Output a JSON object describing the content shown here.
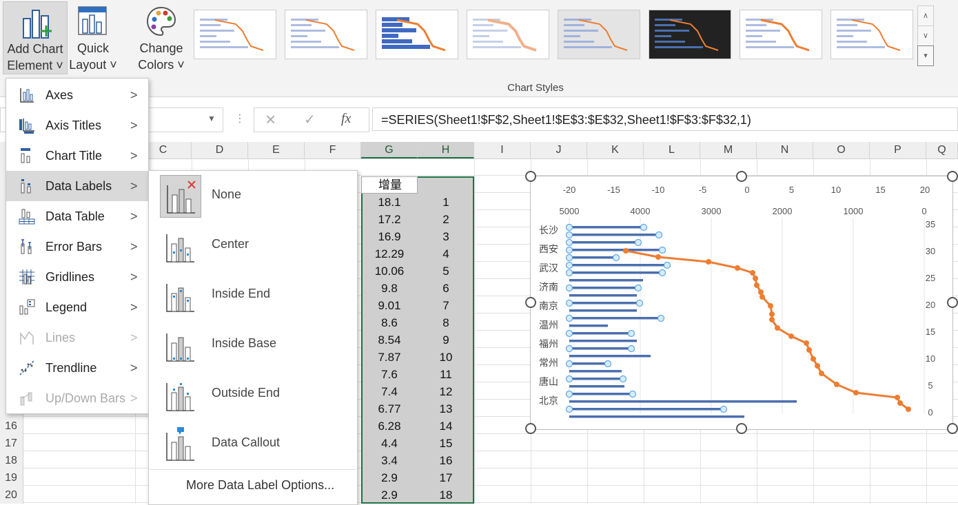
{
  "ribbon": {
    "add_chart_element": [
      "Add Chart",
      "Element ˅"
    ],
    "quick_layout": [
      "Quick",
      "Layout ˅"
    ],
    "change_colors": [
      "Change",
      "Colors ˅"
    ],
    "group_label": "Chart Styles",
    "styles": [
      "Style 1",
      "Style 2",
      "Style 3",
      "Style 4",
      "Style 5",
      "Style 6",
      "Style 7",
      "Style 8"
    ]
  },
  "formula_bar": {
    "cancel_icon": "×",
    "enter_icon": "✓",
    "fx": "fx",
    "formula": "=SERIES(Sheet1!$F$2,Sheet1!$E$3:$E$32,Sheet1!$F$3:$F$32,1)"
  },
  "columns": [
    "C",
    "D",
    "E",
    "F",
    "G",
    "H",
    "I",
    "J",
    "K",
    "L",
    "M",
    "N",
    "O",
    "P",
    "Q"
  ],
  "rows": [
    "16",
    "17",
    "18",
    "19",
    "20"
  ],
  "col_g": {
    "header": "增量",
    "values": [
      "18.1",
      "17.2",
      "16.9",
      "12.29",
      "10.06",
      "9.8",
      "9.01",
      "8.6",
      "8.54",
      "7.87",
      "7.6",
      "7.4",
      "6.77",
      "6.28",
      "4.4",
      "3.4",
      "2.9",
      "2.9"
    ]
  },
  "col_h": {
    "values": [
      "1",
      "2",
      "3",
      "4",
      "5",
      "6",
      "7",
      "8",
      "9",
      "10",
      "11",
      "12",
      "13",
      "14",
      "15",
      "16",
      "17",
      "18"
    ]
  },
  "chart": {
    "top_axis_1": [
      "-20",
      "-15",
      "-10",
      "-5",
      "0",
      "5",
      "10",
      "15",
      "20"
    ],
    "top_axis_2": [
      "5000",
      "4000",
      "3000",
      "2000",
      "1000",
      "0"
    ],
    "right_axis": [
      "35",
      "30",
      "25",
      "20",
      "15",
      "10",
      "5",
      "0"
    ],
    "cities": [
      "长沙",
      "西安",
      "武汉",
      "济南",
      "南京",
      "温州",
      "福州",
      "常州",
      "唐山",
      "北京"
    ],
    "colors": {
      "bar": "#4b6fae",
      "line": "#ed7d31",
      "marker": "#5aa6e6"
    }
  },
  "add_chart_menu": [
    {
      "label": "Axes",
      "icon": "axes-icon"
    },
    {
      "label": "Axis Titles",
      "icon": "axis-titles-icon"
    },
    {
      "label": "Chart Title",
      "icon": "chart-title-icon"
    },
    {
      "label": "Data Labels",
      "icon": "data-labels-icon"
    },
    {
      "label": "Data Table",
      "icon": "data-table-icon"
    },
    {
      "label": "Error Bars",
      "icon": "error-bars-icon"
    },
    {
      "label": "Gridlines",
      "icon": "gridlines-icon"
    },
    {
      "label": "Legend",
      "icon": "legend-icon"
    },
    {
      "label": "Lines",
      "icon": "lines-icon"
    },
    {
      "label": "Trendline",
      "icon": "trendline-icon"
    },
    {
      "label": "Up/Down Bars",
      "icon": "up-down-bars-icon"
    }
  ],
  "data_labels_menu": {
    "items": [
      "None",
      "Center",
      "Inside End",
      "Inside Base",
      "Outside End",
      "Data Callout"
    ],
    "more": "More Data Label Options..."
  }
}
